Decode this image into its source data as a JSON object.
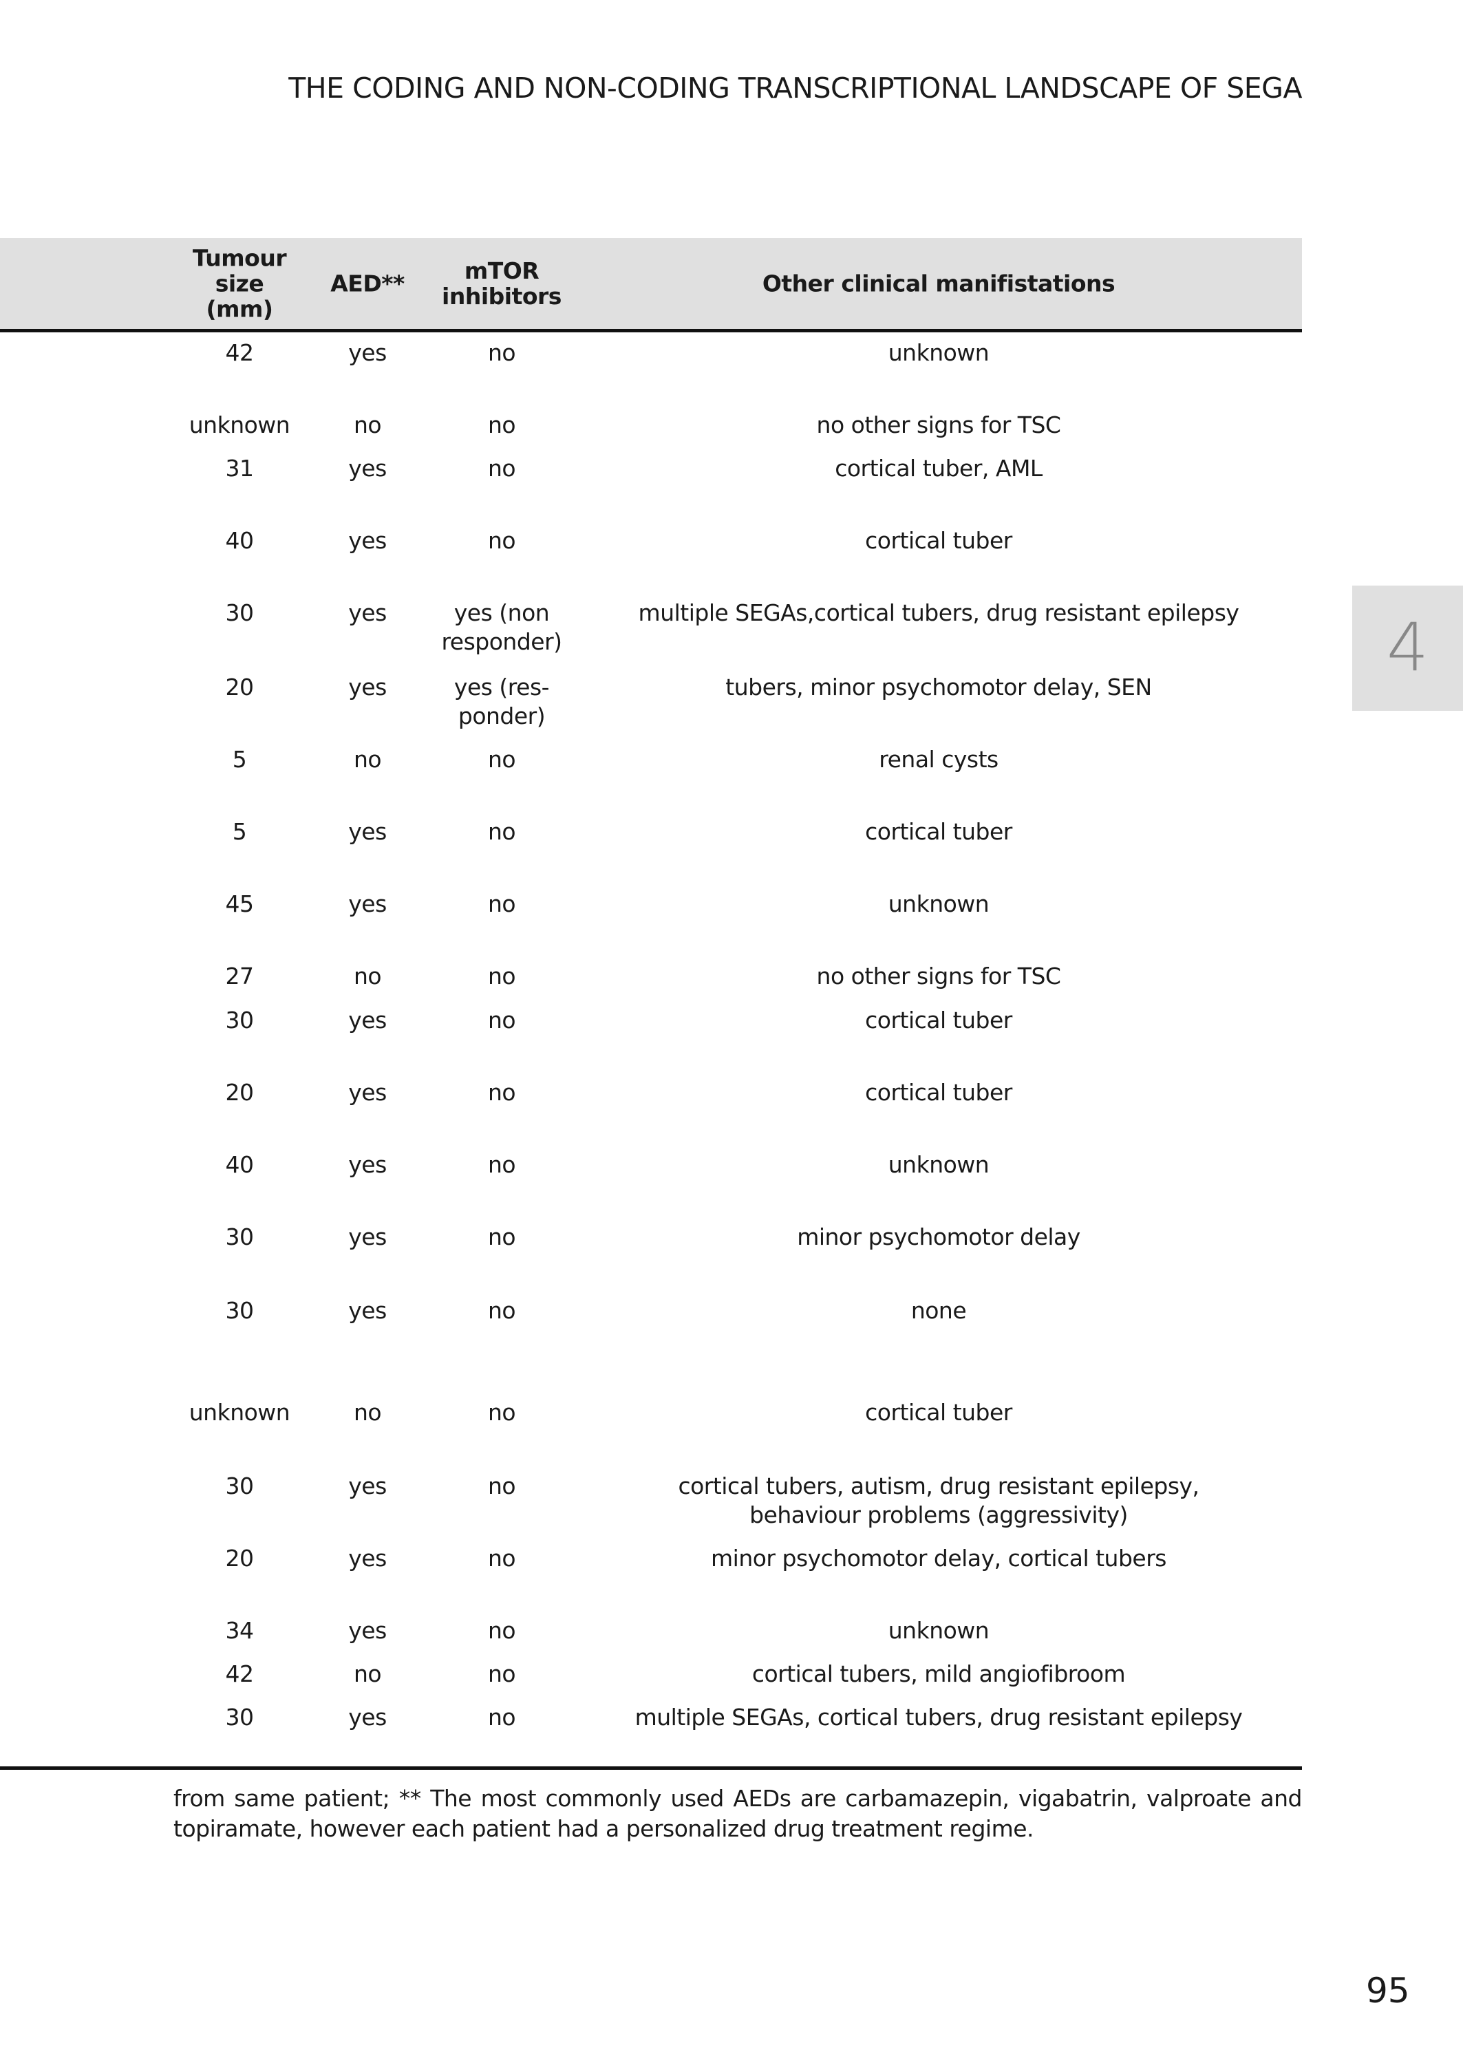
{
  "running_title": "THE CODING AND NON-CODING TRANSCRIPTIONAL LANDSCAPE OF SEGA",
  "table": {
    "headers": [
      "Tumour size (mm)",
      "AED**",
      "mTOR inhibitors",
      "Other clinical manifistations"
    ],
    "rows": [
      [
        "42",
        "yes",
        "no",
        "unknown"
      ],
      [
        "unknown",
        "no",
        "no",
        "no other signs for TSC"
      ],
      [
        "31",
        "yes",
        "no",
        "cortical tuber, AML"
      ],
      [
        "40",
        "yes",
        "no",
        "cortical tuber"
      ],
      [
        "30",
        "yes",
        "yes (non responder)",
        "multiple SEGAs,cortical tubers, drug resistant epilepsy"
      ],
      [
        "20",
        "yes",
        "yes (res-ponder)",
        "tubers, minor psychomotor delay, SEN"
      ],
      [
        "5",
        "no",
        "no",
        "renal cysts"
      ],
      [
        "5",
        "yes",
        "no",
        "cortical tuber"
      ],
      [
        "45",
        "yes",
        "no",
        "unknown"
      ],
      [
        "27",
        "no",
        "no",
        "no other signs for TSC"
      ],
      [
        "30",
        "yes",
        "no",
        "cortical tuber"
      ],
      [
        "20",
        "yes",
        "no",
        "cortical tuber"
      ],
      [
        "40",
        "yes",
        "no",
        "unknown"
      ],
      [
        "30",
        "yes",
        "no",
        "minor psychomotor delay"
      ],
      [
        "30",
        "yes",
        "no",
        "none"
      ],
      [
        "unknown",
        "no",
        "no",
        "cortical tuber"
      ],
      [
        "30",
        "yes",
        "no",
        "cortical tubers, autism, drug resistant epilepsy, behaviour problems (aggressivity)"
      ],
      [
        "20",
        "yes",
        "no",
        "minor psychomotor delay, cortical tubers"
      ],
      [
        "34",
        "yes",
        "no",
        "unknown"
      ],
      [
        "42",
        "no",
        "no",
        "cortical tubers, mild angiofibroom"
      ],
      [
        "30",
        "yes",
        "no",
        "multiple SEGAs, cortical tubers, drug resistant epilepsy"
      ]
    ]
  },
  "footnote": "from same patient; ** The most commonly used AEDs are carbamazepin, vigabatrin, valproate and topiramate, however each patient had a personalized drug treatment regime.",
  "chapter_tab": "4",
  "page_number": "95"
}
